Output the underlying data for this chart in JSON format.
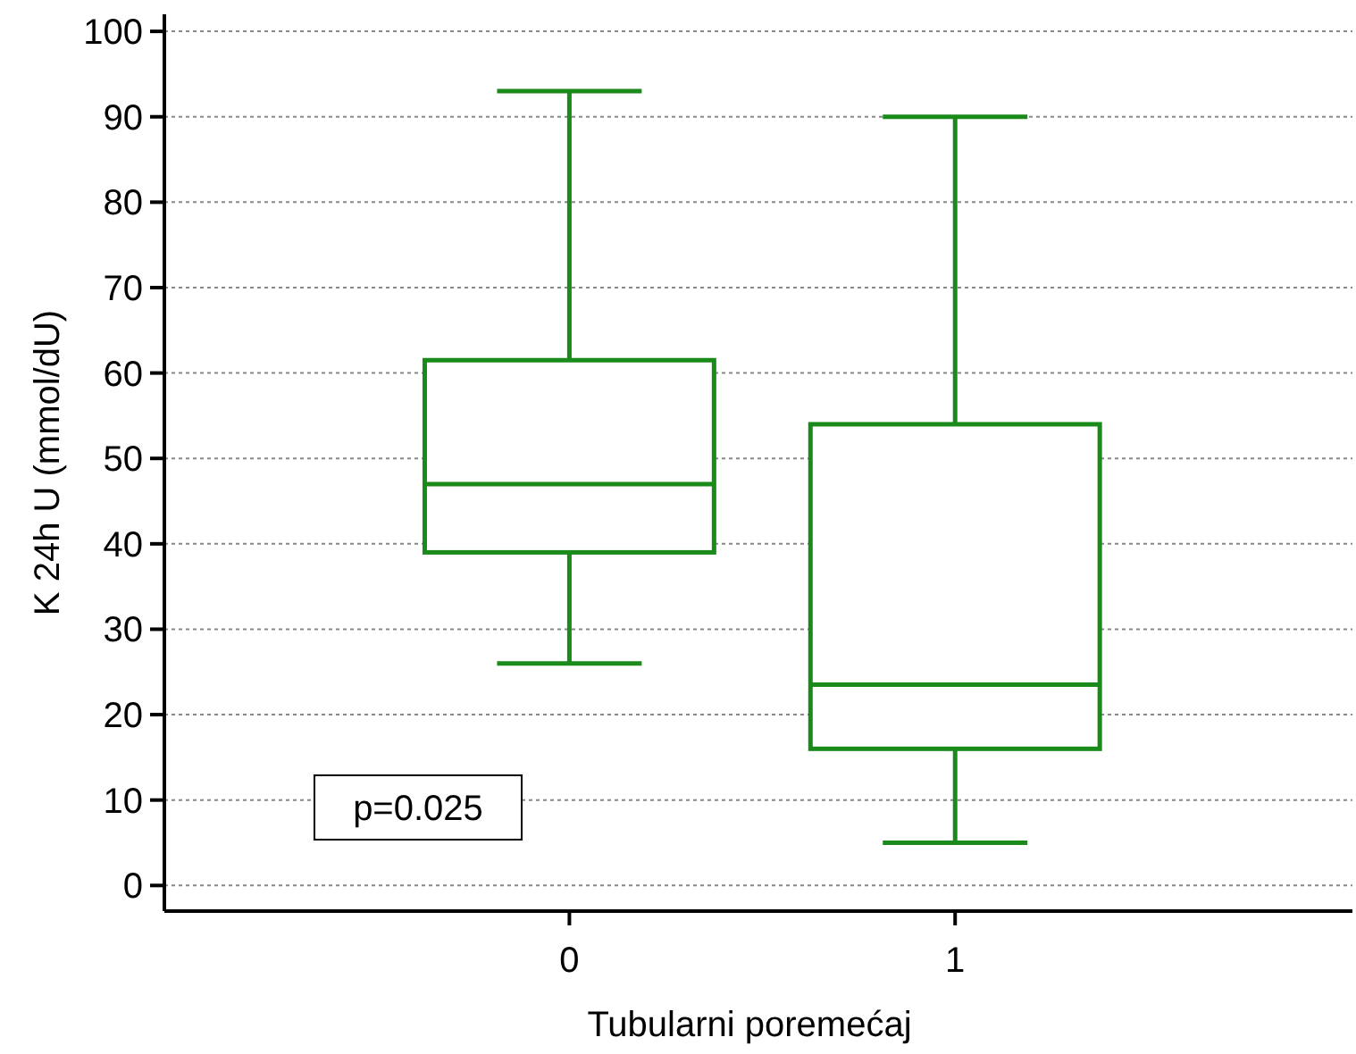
{
  "chart_data": {
    "type": "box",
    "xlabel": "Tubularni poremećaj",
    "ylabel": "K 24h U (mmol/dU)",
    "categories": [
      "0",
      "1"
    ],
    "boxes": [
      {
        "low": 26,
        "q1": 39,
        "median": 47,
        "q3": 61.5,
        "high": 93
      },
      {
        "low": 5,
        "q1": 16,
        "median": 23.5,
        "q3": 54,
        "high": 90
      }
    ],
    "color": "#1a8a1a",
    "ylim": [
      -3,
      102
    ],
    "yticks": [
      0,
      10,
      20,
      30,
      40,
      50,
      60,
      70,
      80,
      90,
      100
    ],
    "grid": "y",
    "annotations": [
      "p=0.025"
    ]
  }
}
